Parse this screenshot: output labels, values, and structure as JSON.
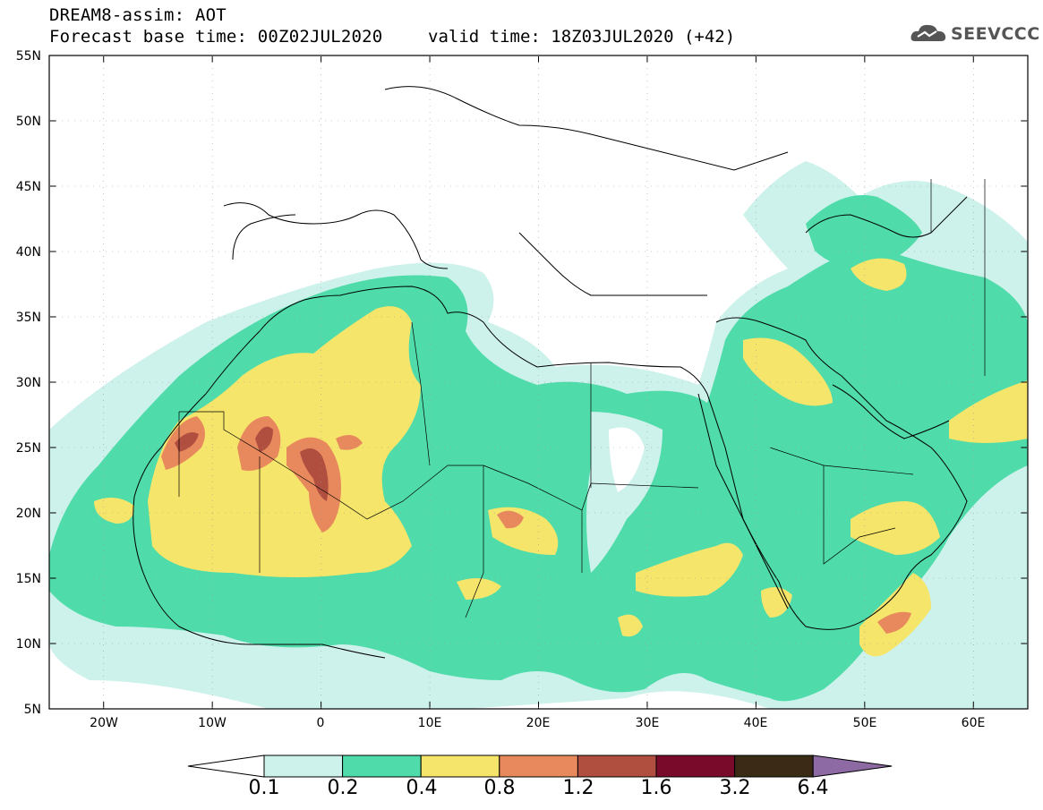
{
  "header": {
    "title": "DREAM8-assim: AOT",
    "base_time": "Forecast base time: 00Z02JUL2020",
    "valid_time": "valid time: 18Z03JUL2020 (+42)",
    "logo_text": "SEEVCCC"
  },
  "map": {
    "lat_labels": [
      "55N",
      "50N",
      "45N",
      "40N",
      "35N",
      "30N",
      "25N",
      "20N",
      "15N",
      "10N",
      "5N"
    ],
    "lon_labels": [
      "20W",
      "10W",
      "0",
      "10E",
      "20E",
      "30E",
      "40E",
      "50E",
      "60E"
    ],
    "extent": {
      "lon_min": -25,
      "lon_max": 65,
      "lat_min": 5,
      "lat_max": 55
    },
    "background": "#ffffff"
  },
  "colorbar": {
    "labels": [
      "0.1",
      "0.2",
      "0.4",
      "0.8",
      "1.2",
      "1.6",
      "3.2",
      "6.4"
    ],
    "colors": [
      "#ffffff",
      "#cdf1eb",
      "#4fdcaa",
      "#f5e56b",
      "#e8895d",
      "#b04e40",
      "#7a0a2a",
      "#3b2a15",
      "#8d6aa3"
    ]
  }
}
